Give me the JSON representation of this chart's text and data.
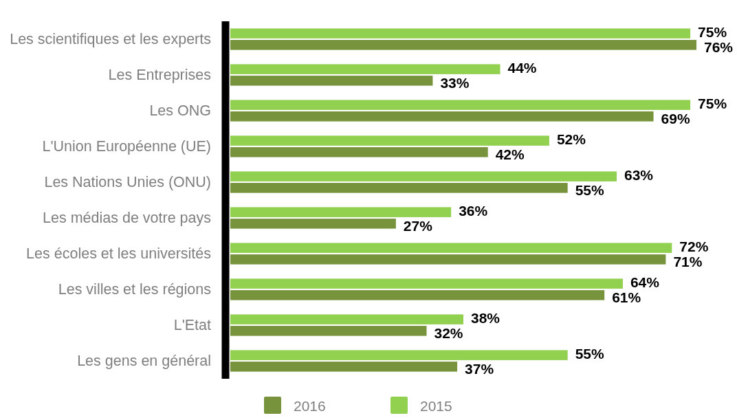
{
  "chart_data": {
    "type": "bar",
    "orientation": "horizontal",
    "categories": [
      "Les scientifiques et les experts",
      "Les Entreprises",
      "Les ONG",
      "L'Union Européenne (UE)",
      "Les Nations Unies (ONU)",
      "Les médias de votre pays",
      "Les écoles et les universités",
      "Les villes et les régions",
      "L'Etat",
      "Les gens en général"
    ],
    "series": [
      {
        "name": "2015",
        "color": "#92d050",
        "values": [
          75,
          44,
          75,
          52,
          63,
          36,
          72,
          64,
          38,
          55
        ],
        "value_labels": [
          "75%",
          "44%",
          "75%",
          "52%",
          "63%",
          "36%",
          "72%",
          "64%",
          "38%",
          "55%"
        ]
      },
      {
        "name": "2016",
        "color": "#77933c",
        "values": [
          76,
          33,
          69,
          42,
          55,
          27,
          71,
          61,
          32,
          37
        ],
        "value_labels": [
          "76%",
          "33%",
          "69%",
          "42%",
          "55%",
          "27%",
          "71%",
          "61%",
          "32%",
          "37%"
        ]
      }
    ],
    "tick_labels": "y",
    "legend": "bottom"
  }
}
